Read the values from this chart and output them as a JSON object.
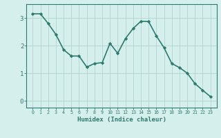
{
  "xlabel": "Humidex (Indice chaleur)",
  "x_values": [
    0,
    1,
    2,
    3,
    4,
    5,
    6,
    7,
    8,
    9,
    10,
    11,
    12,
    13,
    14,
    15,
    16,
    17,
    18,
    19,
    20,
    21,
    22,
    23
  ],
  "y_values": [
    3.15,
    3.15,
    2.8,
    2.4,
    1.85,
    1.62,
    1.62,
    1.22,
    1.35,
    1.38,
    2.08,
    1.72,
    2.25,
    2.62,
    2.88,
    2.87,
    2.35,
    1.92,
    1.35,
    1.2,
    1.0,
    0.62,
    0.38,
    0.15
  ],
  "line_color": "#2e7b6e",
  "marker": "D",
  "marker_size": 2.2,
  "background_color": "#d4efec",
  "grid_color": "#b8d8d4",
  "tick_color": "#2e7b6e",
  "label_color": "#2e7b6e",
  "ylim": [
    -0.25,
    3.5
  ],
  "yticks": [
    0,
    1,
    2,
    3
  ],
  "line_width": 1.2
}
